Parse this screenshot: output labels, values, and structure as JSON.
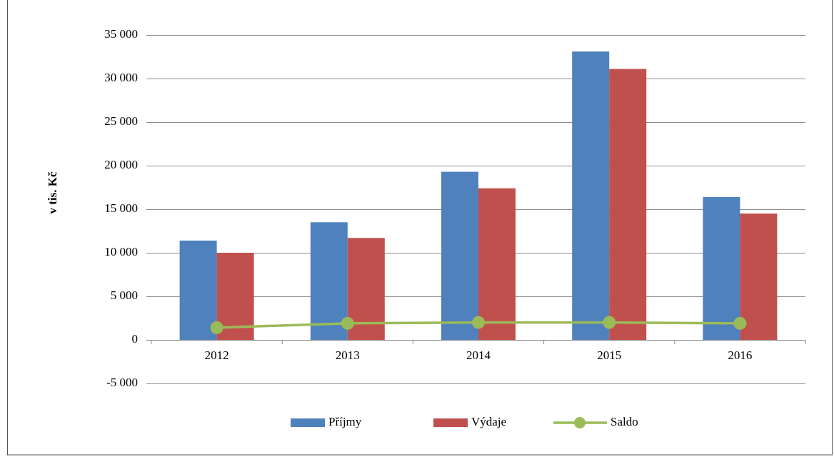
{
  "chart_data": {
    "type": "bar_line",
    "y_label": "v tis. Kč",
    "categories": [
      "2012",
      "2013",
      "2014",
      "2015",
      "2016"
    ],
    "series": [
      {
        "name": "Příjmy",
        "type": "bar",
        "color": "#4f81bd",
        "values": [
          11400,
          13500,
          19300,
          33100,
          16400
        ]
      },
      {
        "name": "Výdaje",
        "type": "bar",
        "color": "#c0504d",
        "values": [
          10000,
          11700,
          17400,
          31100,
          14500
        ]
      },
      {
        "name": "Saldo",
        "type": "line",
        "color": "#9bbb59",
        "values": [
          1400,
          1900,
          2000,
          2000,
          1900
        ]
      }
    ],
    "ylim": [
      -5000,
      35000
    ],
    "yticks": [
      {
        "value": -5000,
        "label": "-5 000"
      },
      0,
      {
        "value": 5000,
        "label": "5 000"
      },
      {
        "value": 10000,
        "label": "10 000"
      },
      {
        "value": 15000,
        "label": "15 000"
      },
      {
        "value": 20000,
        "label": "20 000"
      },
      {
        "value": 25000,
        "label": "25 000"
      },
      {
        "value": 30000,
        "label": "30 000"
      },
      {
        "value": 35000,
        "label": "35 000"
      }
    ],
    "grid": true
  }
}
